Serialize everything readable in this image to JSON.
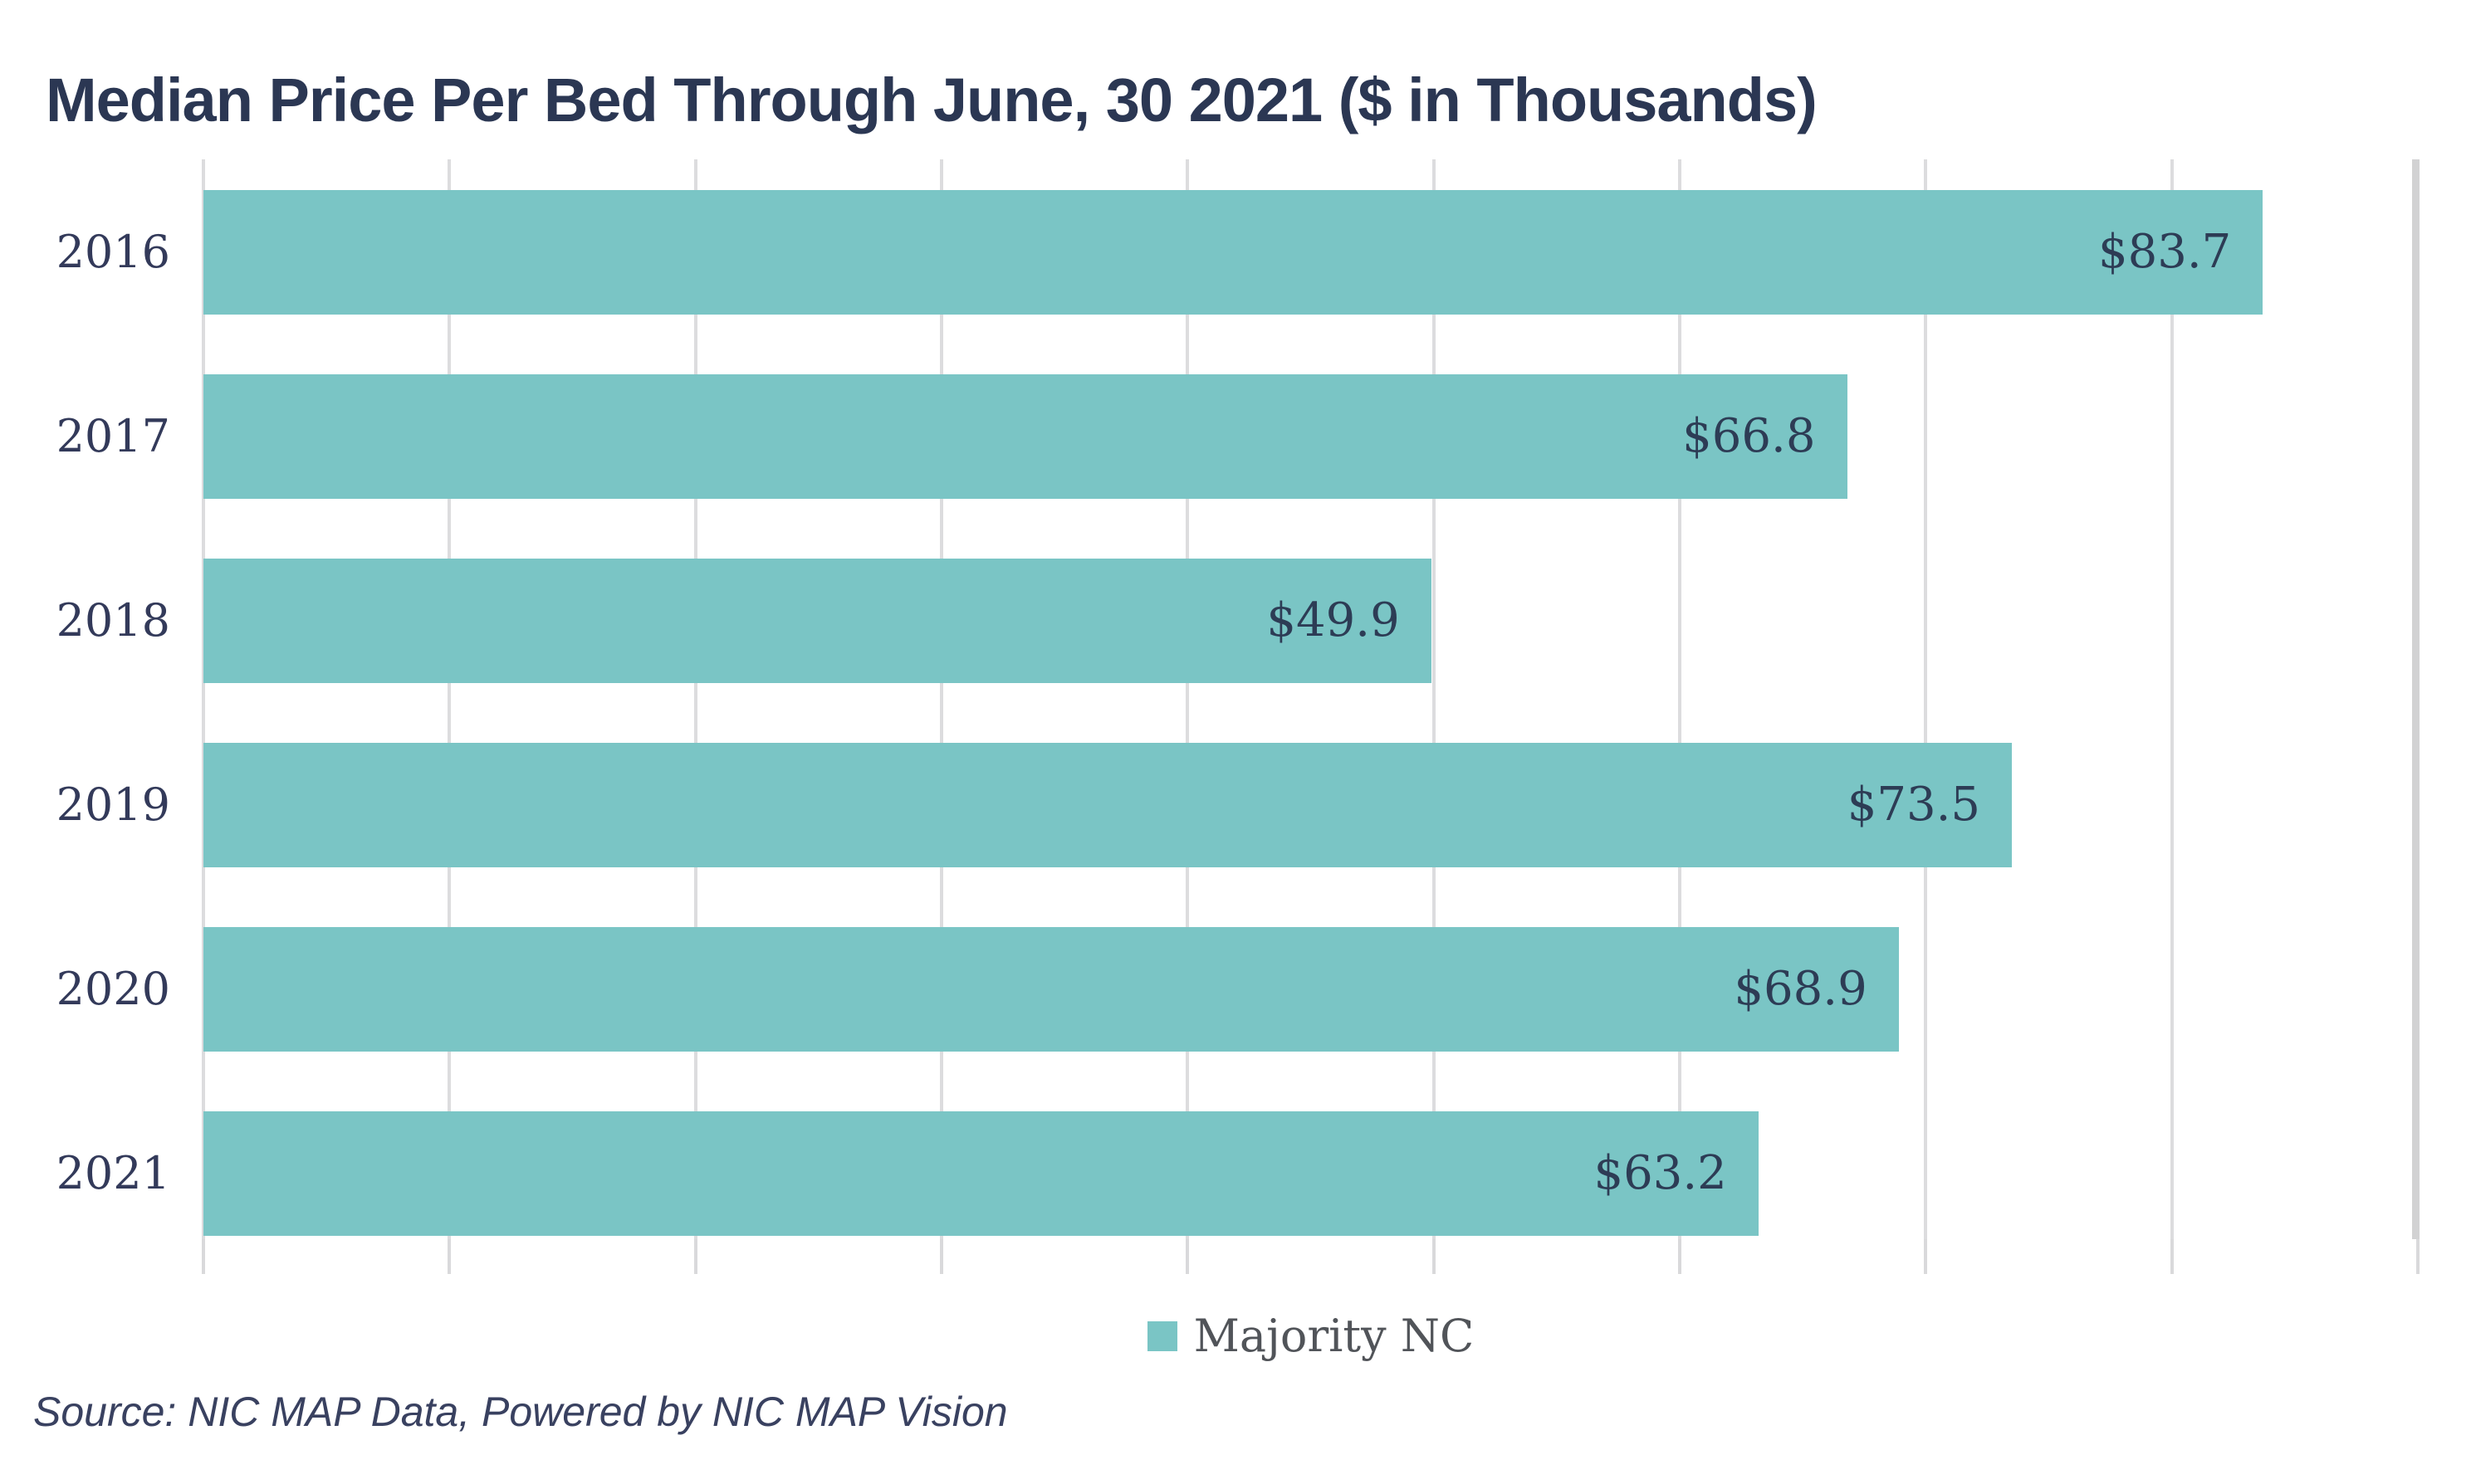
{
  "chart": {
    "title": "Median Price Per Bed Through June, 30 2021 ($ in Thousands)",
    "legend_label": "Majority NC",
    "source_note": "Source: NIC MAP Data, Powered by NIC MAP Vision"
  },
  "chart_data": {
    "type": "bar",
    "orientation": "horizontal",
    "title": "Median Price Per Bed Through June, 30 2021 ($ in Thousands)",
    "categories": [
      "2016",
      "2017",
      "2018",
      "2019",
      "2020",
      "2021"
    ],
    "series": [
      {
        "name": "Majority NC",
        "values": [
          83.7,
          66.8,
          49.9,
          73.5,
          68.9,
          63.2
        ],
        "value_labels": [
          "$83.7",
          "$66.8",
          "$49.9",
          "$73.5",
          "$68.9",
          "$63.2"
        ],
        "color": "#7ac5c5"
      }
    ],
    "xlabel": "",
    "ylabel": "",
    "xlim": [
      0,
      90
    ],
    "grid_step": 10,
    "grid": "vertical",
    "legend_position": "bottom",
    "source": "Source: NIC MAP Data, Powered by NIC MAP Vision",
    "colors": {
      "bar": "#7ac5c5",
      "title_text": "#2b3753",
      "category_label_text": "#333a5a",
      "value_label_text": "#2d3c55",
      "legend_text": "#515459",
      "source_text": "#394160",
      "gridline": "#dcdcde",
      "axis_edge_line": "#d2d2d3"
    }
  }
}
